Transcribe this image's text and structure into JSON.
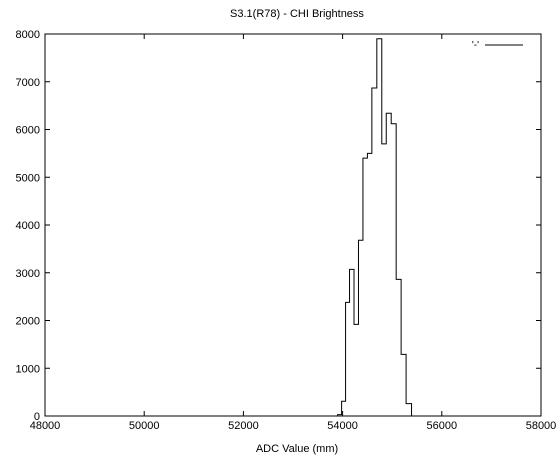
{
  "chart_data": {
    "type": "histogram-step",
    "title": "S3.1(R78) - CHI Brightness",
    "xlabel": "ADC Value (mm)",
    "ylabel": "",
    "xlim": [
      48000,
      58000
    ],
    "ylim": [
      0,
      8000
    ],
    "xticks": [
      48000,
      50000,
      52000,
      54000,
      56000,
      58000
    ],
    "yticks": [
      0,
      1000,
      2000,
      3000,
      4000,
      5000,
      6000,
      7000,
      8000
    ],
    "grid": false,
    "legend": {
      "position": "top-right",
      "label": "'-'"
    },
    "series": [
      {
        "name": "'-'",
        "color": "#000000",
        "steps": [
          {
            "x0": 53800,
            "x1": 53900,
            "y": 0
          },
          {
            "x0": 53900,
            "x1": 53980,
            "y": 30
          },
          {
            "x0": 53980,
            "x1": 54060,
            "y": 310
          },
          {
            "x0": 54060,
            "x1": 54140,
            "y": 2380
          },
          {
            "x0": 54140,
            "x1": 54230,
            "y": 3070
          },
          {
            "x0": 54230,
            "x1": 54320,
            "y": 1920
          },
          {
            "x0": 54320,
            "x1": 54410,
            "y": 3680
          },
          {
            "x0": 54410,
            "x1": 54500,
            "y": 5400
          },
          {
            "x0": 54500,
            "x1": 54590,
            "y": 5500
          },
          {
            "x0": 54590,
            "x1": 54690,
            "y": 6870
          },
          {
            "x0": 54690,
            "x1": 54790,
            "y": 7900
          },
          {
            "x0": 54790,
            "x1": 54880,
            "y": 5700
          },
          {
            "x0": 54880,
            "x1": 54980,
            "y": 6340
          },
          {
            "x0": 54980,
            "x1": 55080,
            "y": 6120
          },
          {
            "x0": 55080,
            "x1": 55180,
            "y": 2860
          },
          {
            "x0": 55180,
            "x1": 55280,
            "y": 1290
          },
          {
            "x0": 55280,
            "x1": 55390,
            "y": 260
          },
          {
            "x0": 55390,
            "x1": 55450,
            "y": 0
          }
        ]
      }
    ]
  }
}
